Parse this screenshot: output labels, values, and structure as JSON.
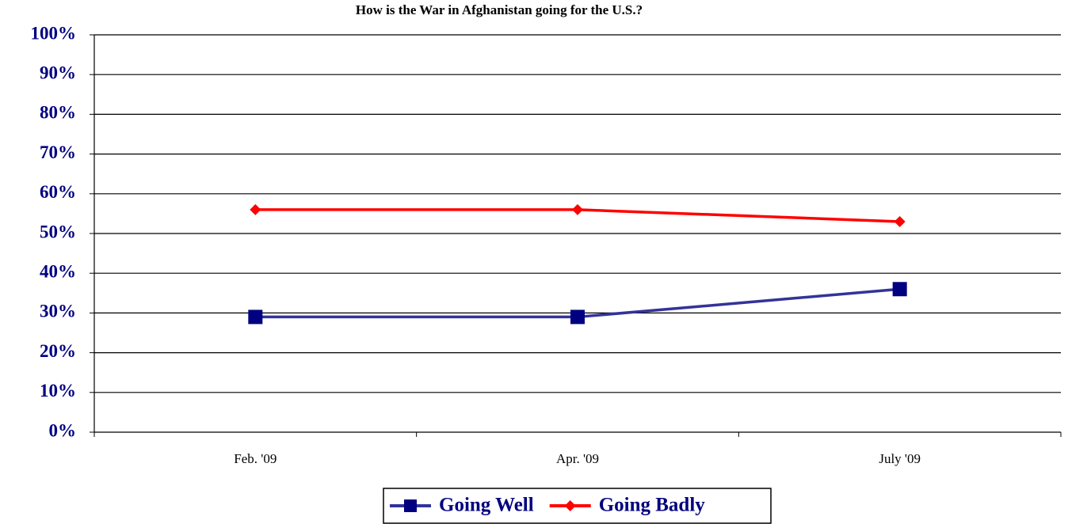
{
  "chart_data": {
    "type": "line",
    "title": "How is the War in Afghanistan going for the U.S.?",
    "categories": [
      "Feb. '09",
      "Apr. '09",
      "July '09"
    ],
    "series": [
      {
        "name": "Going Well",
        "color": "#333399",
        "marker_color": "#000080",
        "marker": "square",
        "values": [
          29,
          29,
          36
        ]
      },
      {
        "name": "Going Badly",
        "color": "#ff0000",
        "marker_color": "#ff0000",
        "marker": "diamond",
        "values": [
          56,
          56,
          53
        ]
      }
    ],
    "ylim": [
      0,
      100
    ],
    "yticks": [
      {
        "value": 0,
        "label": "0%"
      },
      {
        "value": 10,
        "label": "10%"
      },
      {
        "value": 20,
        "label": "20%"
      },
      {
        "value": 30,
        "label": "30%"
      },
      {
        "value": 40,
        "label": "40%"
      },
      {
        "value": 50,
        "label": "50%"
      },
      {
        "value": 60,
        "label": "60%"
      },
      {
        "value": 70,
        "label": "70%"
      },
      {
        "value": 80,
        "label": "80%"
      },
      {
        "value": 90,
        "label": "90%"
      },
      {
        "value": 100,
        "label": "100%"
      }
    ],
    "grid": true,
    "legend": "bottom"
  }
}
